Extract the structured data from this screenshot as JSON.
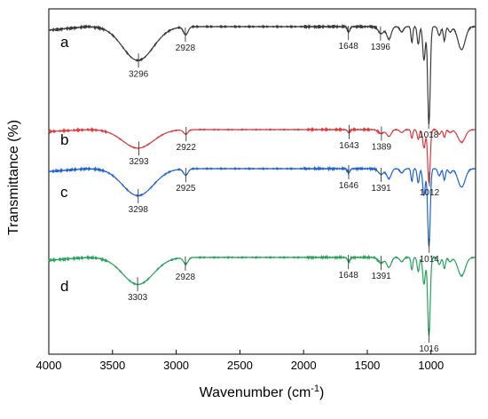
{
  "chart_data": {
    "type": "line",
    "title": "",
    "xlabel": "Wavenumber (cm",
    "xlabel_sup": "-1",
    "xlabel_close": ")",
    "ylabel": "Transmittance (%)",
    "xlim": [
      4000,
      650
    ],
    "x_reversed": true,
    "x_ticks": [
      "4000",
      "3500",
      "3000",
      "2500",
      "2000",
      "1500",
      "1000"
    ],
    "grid": false,
    "legend": "none",
    "series": [
      {
        "name": "a",
        "color": "#3a3a3a",
        "peaks": [
          "3296",
          "2928",
          "1648",
          "1396",
          "1018"
        ]
      },
      {
        "name": "b",
        "color": "#e0383a",
        "peaks": [
          "3293",
          "2922",
          "1643",
          "1389",
          "1012"
        ]
      },
      {
        "name": "c",
        "color": "#1f62d6",
        "peaks": [
          "3298",
          "2925",
          "1646",
          "1391",
          "1014"
        ]
      },
      {
        "name": "d",
        "color": "#27a35a",
        "peaks": [
          "3303",
          "2928",
          "1648",
          "1391",
          "1016"
        ]
      }
    ]
  }
}
